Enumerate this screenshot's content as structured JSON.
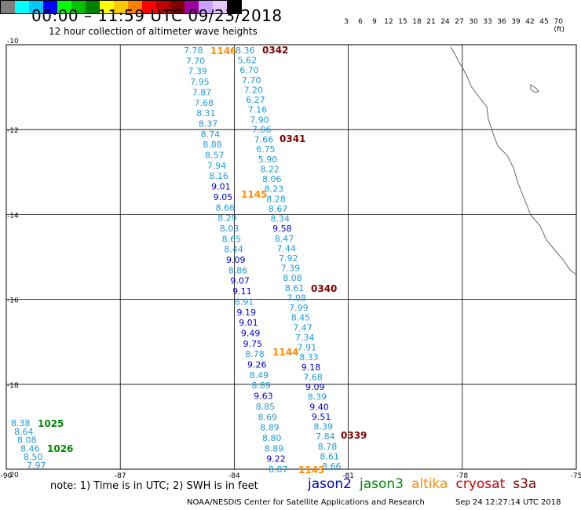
{
  "title": "00:00 – 11:59 UTC 09/23/2018",
  "subtitle": "12 hour collection of altimeter wave heights",
  "legend": {
    "colors": [
      "#7f7f7f",
      "#00ffff",
      "#00c8ff",
      "#0000ff",
      "#00ff00",
      "#00c000",
      "#008000",
      "#ffff00",
      "#ffc800",
      "#ff8000",
      "#ff0000",
      "#c00000",
      "#800000",
      "#a000a0",
      "#c8a0ff",
      "#e6c8ff",
      "#000000"
    ],
    "labels": [
      "3",
      "6",
      "9",
      "12",
      "15",
      "18",
      "21",
      "24",
      "27",
      "30",
      "33",
      "36",
      "39",
      "42",
      "45",
      "70 (ft)"
    ]
  },
  "map": {
    "lon_range": [
      -90,
      -75
    ],
    "lat_range": [
      -20,
      -10
    ],
    "x_ticks": [
      "-90",
      "-87",
      "-84",
      "-81",
      "-78",
      "-75"
    ],
    "y_ticks": [
      "-10",
      "-12",
      "-14",
      "-16",
      "-18",
      "-20"
    ],
    "coastline": "gray"
  },
  "satellite_colors": {
    "jason2": "#0000cc",
    "jason3": "#008800",
    "altika": "#ff8c00",
    "cryosat": "#cc0000",
    "s3a": "#800000",
    "light": "#1e9bd7"
  },
  "tracks": [
    {
      "id": "track-a",
      "values": [
        {
          "v": "7.78",
          "c": "light"
        },
        {
          "v": "7.70",
          "c": "light"
        },
        {
          "v": "7.39",
          "c": "light"
        },
        {
          "v": "7.95",
          "c": "light"
        },
        {
          "v": "7.87",
          "c": "light"
        },
        {
          "v": "7.68",
          "c": "light"
        },
        {
          "v": "8.31",
          "c": "light"
        },
        {
          "v": "8.37",
          "c": "light"
        },
        {
          "v": "8.74",
          "c": "light"
        },
        {
          "v": "8.88",
          "c": "light"
        },
        {
          "v": "8.57",
          "c": "light"
        },
        {
          "v": "7.94",
          "c": "light"
        },
        {
          "v": "8.16",
          "c": "light"
        },
        {
          "v": "9.01",
          "c": "jason2"
        },
        {
          "v": "9.05",
          "c": "jason2"
        },
        {
          "v": "8.66",
          "c": "light"
        },
        {
          "v": "8.29",
          "c": "light"
        },
        {
          "v": "8.03",
          "c": "light"
        },
        {
          "v": "8.65",
          "c": "light"
        },
        {
          "v": "8.44",
          "c": "light"
        },
        {
          "v": "9.09",
          "c": "jason2"
        },
        {
          "v": "8.86",
          "c": "light"
        },
        {
          "v": "9.07",
          "c": "jason2"
        },
        {
          "v": "9.11",
          "c": "jason2"
        },
        {
          "v": "8.91",
          "c": "light"
        },
        {
          "v": "9.19",
          "c": "jason2"
        },
        {
          "v": "9.01",
          "c": "jason2"
        },
        {
          "v": "9.49",
          "c": "jason2"
        },
        {
          "v": "9.75",
          "c": "jason2"
        },
        {
          "v": "8.78",
          "c": "light"
        },
        {
          "v": "9.26",
          "c": "jason2"
        },
        {
          "v": "8.49",
          "c": "light"
        },
        {
          "v": "8.89",
          "c": "light"
        },
        {
          "v": "9.63",
          "c": "jason2"
        },
        {
          "v": "8.85",
          "c": "light"
        },
        {
          "v": "8.69",
          "c": "light"
        },
        {
          "v": "8.89",
          "c": "light"
        },
        {
          "v": "8.80",
          "c": "light"
        },
        {
          "v": "8.89",
          "c": "light"
        },
        {
          "v": "9.22",
          "c": "jason2"
        },
        {
          "v": "8.87",
          "c": "light"
        }
      ]
    },
    {
      "id": "track-b",
      "values": [
        {
          "v": "8.36",
          "c": "light"
        },
        {
          "v": "5.62",
          "c": "light"
        },
        {
          "v": "6.70",
          "c": "light"
        },
        {
          "v": "7.70",
          "c": "light"
        },
        {
          "v": "7.20",
          "c": "light"
        },
        {
          "v": "6.27",
          "c": "light"
        },
        {
          "v": "7.16",
          "c": "light"
        },
        {
          "v": "7.90",
          "c": "light"
        },
        {
          "v": "7.06",
          "c": "light"
        },
        {
          "v": "7.66",
          "c": "light"
        },
        {
          "v": "6.75",
          "c": "light"
        },
        {
          "v": "5.90",
          "c": "light"
        },
        {
          "v": "8.22",
          "c": "light"
        },
        {
          "v": "8.06",
          "c": "light"
        },
        {
          "v": "8.23",
          "c": "light"
        },
        {
          "v": "8.28",
          "c": "light"
        },
        {
          "v": "8.67",
          "c": "light"
        },
        {
          "v": "8.34",
          "c": "light"
        },
        {
          "v": "9.58",
          "c": "jason2"
        },
        {
          "v": "8.47",
          "c": "light"
        },
        {
          "v": "7.44",
          "c": "light"
        },
        {
          "v": "7.92",
          "c": "light"
        },
        {
          "v": "7.39",
          "c": "light"
        },
        {
          "v": "8.08",
          "c": "light"
        },
        {
          "v": "8.61",
          "c": "light"
        },
        {
          "v": "7.08",
          "c": "light"
        },
        {
          "v": "7.99",
          "c": "light"
        },
        {
          "v": "8.45",
          "c": "light"
        },
        {
          "v": "7.47",
          "c": "light"
        },
        {
          "v": "7.34",
          "c": "light"
        },
        {
          "v": "7.91",
          "c": "light"
        },
        {
          "v": "8.33",
          "c": "light"
        },
        {
          "v": "9.18",
          "c": "jason2"
        },
        {
          "v": "7.68",
          "c": "light"
        },
        {
          "v": "9.09",
          "c": "jason2"
        },
        {
          "v": "8.39",
          "c": "light"
        },
        {
          "v": "9.40",
          "c": "jason2"
        },
        {
          "v": "9.51",
          "c": "jason2"
        },
        {
          "v": "8.39",
          "c": "light"
        },
        {
          "v": "7.84",
          "c": "light"
        },
        {
          "v": "8.78",
          "c": "light"
        },
        {
          "v": "8.61",
          "c": "light"
        },
        {
          "v": "8.66",
          "c": "light"
        }
      ]
    },
    {
      "id": "track-c",
      "values": [
        {
          "v": "8.38",
          "c": "light"
        },
        {
          "v": "8.64",
          "c": "light"
        },
        {
          "v": "8.08",
          "c": "light"
        },
        {
          "v": "8.46",
          "c": "light"
        },
        {
          "v": "8.50",
          "c": "light"
        },
        {
          "v": "7.97",
          "c": "light"
        }
      ]
    }
  ],
  "time_labels": [
    {
      "t": "1146",
      "c": "altika"
    },
    {
      "t": "0342",
      "c": "s3a"
    },
    {
      "t": "0341",
      "c": "s3a"
    },
    {
      "t": "1145",
      "c": "altika"
    },
    {
      "t": "0340",
      "c": "s3a"
    },
    {
      "t": "1144",
      "c": "altika"
    },
    {
      "t": "0339",
      "c": "s3a"
    },
    {
      "t": "1143",
      "c": "altika"
    },
    {
      "t": "1025",
      "c": "jason3"
    },
    {
      "t": "1026",
      "c": "jason3"
    }
  ],
  "note": "note:  1) Time is in UTC;  2) SWH is in feet",
  "satellites": [
    {
      "name": "jason2",
      "c": "jason2"
    },
    {
      "name": "jason3",
      "c": "jason3"
    },
    {
      "name": "altika",
      "c": "altika"
    },
    {
      "name": "cryosat",
      "c": "cryosat"
    },
    {
      "name": "s3a",
      "c": "s3a"
    }
  ],
  "credit": "NOAA/NESDIS Center for Satellite Applications and Research",
  "timestamp": "Sep 24 12:27:14 UTC 2018"
}
